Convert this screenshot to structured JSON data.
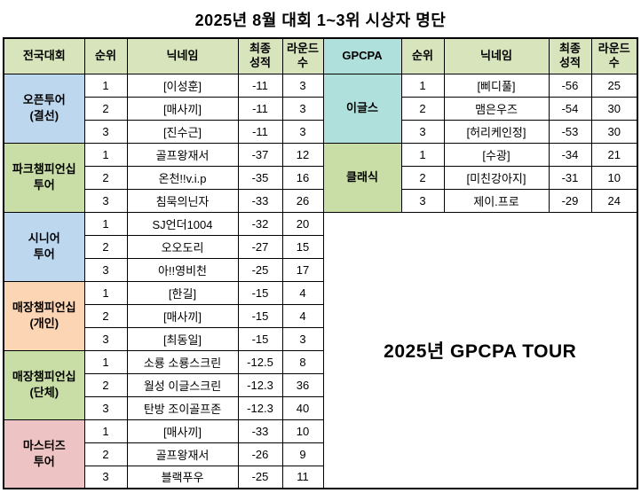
{
  "title": "2025년 8월 대회 1~3위 시상자 명단",
  "colors": {
    "header_green": "#d8e4bc",
    "blue": "#bdd7ee",
    "cyan": "#b0e0dc",
    "green": "#c9dda6",
    "tan": "#fcd5b4",
    "pink": "#edc4c3",
    "border": "#000000"
  },
  "left": {
    "headers": [
      "전국대회",
      "순위",
      "닉네임",
      "최종\n성적",
      "라운드\n수"
    ],
    "groups": [
      {
        "name": "오픈투어\n(결선)",
        "color": "blue",
        "rows": [
          [
            "1",
            "[이성훈]",
            "-11",
            "3"
          ],
          [
            "2",
            "[매사끼]",
            "-11",
            "3"
          ],
          [
            "3",
            "[진수근]",
            "-11",
            "3"
          ]
        ]
      },
      {
        "name": "파크챔피언십\n투어",
        "color": "green",
        "rows": [
          [
            "1",
            "골프왕재서",
            "-37",
            "12"
          ],
          [
            "2",
            "온천!!v.i.p",
            "-35",
            "16"
          ],
          [
            "3",
            "침묵의닌자",
            "-33",
            "26"
          ]
        ]
      },
      {
        "name": "시니어\n투어",
        "color": "blue",
        "rows": [
          [
            "1",
            "SJ언더1004",
            "-32",
            "20"
          ],
          [
            "2",
            "오오도리",
            "-27",
            "15"
          ],
          [
            "3",
            "아!!영비천",
            "-25",
            "17"
          ]
        ]
      },
      {
        "name": "매장챔피언십\n(개인)",
        "color": "tan",
        "rows": [
          [
            "1",
            "[한길]",
            "-15",
            "4"
          ],
          [
            "2",
            "[매사끼]",
            "-15",
            "4"
          ],
          [
            "3",
            "[최동일]",
            "-15",
            "3"
          ]
        ]
      },
      {
        "name": "매장챔피언십\n(단체)",
        "color": "green",
        "rows": [
          [
            "1",
            "소룡 소룡스크린",
            "-12.5",
            "8"
          ],
          [
            "2",
            "월성 이글스크린",
            "-12.3",
            "36"
          ],
          [
            "3",
            "탄방 조이골프존",
            "-12.3",
            "40"
          ]
        ]
      },
      {
        "name": "마스터즈\n투어",
        "color": "pink",
        "rows": [
          [
            "1",
            "[매사끼]",
            "-33",
            "10"
          ],
          [
            "2",
            "골프왕재서",
            "-26",
            "9"
          ],
          [
            "3",
            "블랙푸우",
            "-25",
            "11"
          ]
        ]
      }
    ]
  },
  "right": {
    "headers": [
      "GPCPA",
      "순위",
      "닉네임",
      "최종\n성적",
      "라운드\n수"
    ],
    "header_color": "cyan",
    "groups": [
      {
        "name": "이글스",
        "color": "cyan",
        "rows": [
          [
            "1",
            "[삐디풀]",
            "-56",
            "25"
          ],
          [
            "2",
            "맴은우즈",
            "-54",
            "30"
          ],
          [
            "3",
            "[허리케인정]",
            "-53",
            "30"
          ]
        ]
      },
      {
        "name": "클래식",
        "color": "green",
        "rows": [
          [
            "1",
            "[수광]",
            "-34",
            "21"
          ],
          [
            "2",
            "[미친강아지]",
            "-31",
            "10"
          ],
          [
            "3",
            "제이.프로",
            "-29",
            "24"
          ]
        ]
      }
    ],
    "footer_text": "2025년 GPCPA TOUR"
  }
}
